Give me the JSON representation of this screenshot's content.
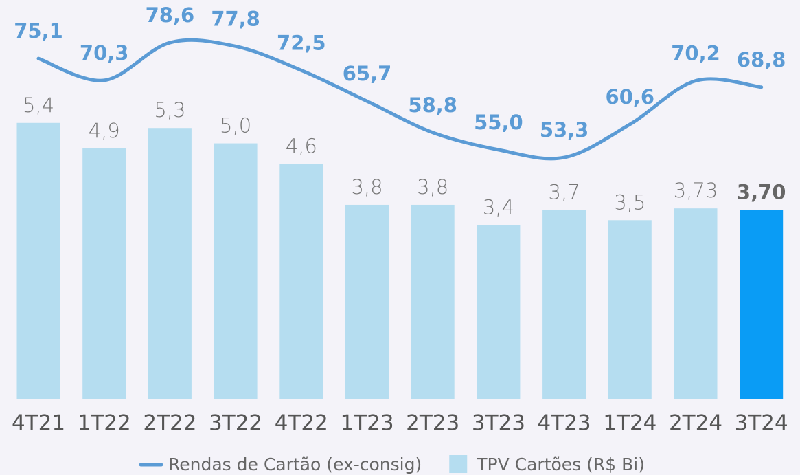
{
  "chart_data": {
    "type": "bar_line",
    "categories": [
      "4T21",
      "1T22",
      "2T22",
      "3T22",
      "4T22",
      "1T23",
      "2T23",
      "3T23",
      "4T23",
      "1T24",
      "2T24",
      "3T24"
    ],
    "series": [
      {
        "name": "Rendas de Cartão (ex-consig)",
        "type": "line",
        "axis": "y2",
        "color": "#5b9bd5",
        "values": [
          75.1,
          70.3,
          78.6,
          77.8,
          72.5,
          65.7,
          58.8,
          55.0,
          53.3,
          60.6,
          70.2,
          68.8
        ],
        "value_labels": [
          "75,1",
          "70,3",
          "78,6",
          "77,8",
          "72,5",
          "65,7",
          "58,8",
          "55,0",
          "53,3",
          "60,6",
          "70,2",
          "68,8"
        ]
      },
      {
        "name": "TPV Cartões (R$ Bi)",
        "type": "bar",
        "color": "#b5ddf0",
        "colors": [
          "#b5ddf0",
          "#b5ddf0",
          "#b5ddf0",
          "#b5ddf0",
          "#b5ddf0",
          "#b5ddf0",
          "#b5ddf0",
          "#b5ddf0",
          "#b5ddf0",
          "#b5ddf0",
          "#b5ddf0",
          "#0a9cf5"
        ],
        "values": [
          5.4,
          4.9,
          5.3,
          5.0,
          4.6,
          3.8,
          3.8,
          3.4,
          3.7,
          3.5,
          3.73,
          3.7
        ],
        "value_labels": [
          "5,4",
          "4,9",
          "5,3",
          "5,0",
          "4,6",
          "3,8",
          "3,8",
          "3,4",
          "3,7",
          "3,5",
          "3,73",
          "3,70"
        ]
      }
    ],
    "ylim": [
      0,
      7.8
    ],
    "y2lim": [
      0,
      88
    ],
    "legend": "bottom"
  }
}
